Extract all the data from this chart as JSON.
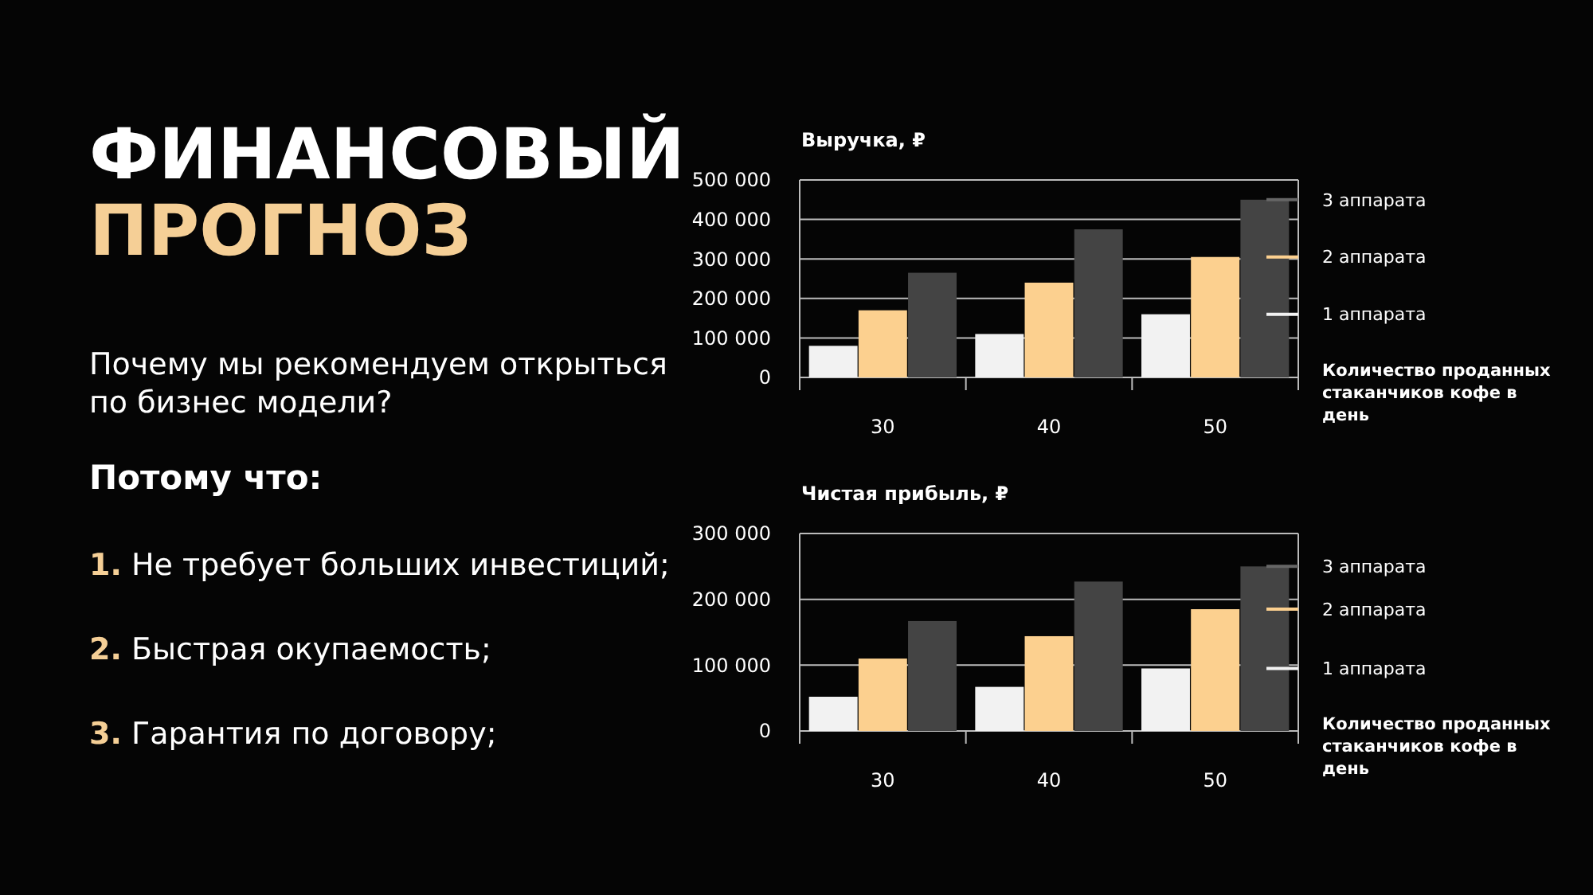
{
  "chart_data": [
    {
      "type": "other",
      "title": "ФИНАНСОВЫЙ ПРОГНОЗ",
      "annotations": [
        "Почему мы рекомендуем открыться по бизнес модели?",
        "Потому что:",
        "1. Не требует больших инвестиций;",
        "2. Быстрая окупаемость;",
        "3. Гарантия по договору;"
      ]
    },
    {
      "type": "bar",
      "title": "Выручка, ₽",
      "xlabel": "Количество проданных стаканчиков кофе в день",
      "categories": [
        "30",
        "40",
        "50"
      ],
      "series": [
        {
          "name": "1 аппарата",
          "color": "#f2f2f2",
          "values": [
            80000,
            110000,
            160000
          ]
        },
        {
          "name": "2 аппарата",
          "color": "#fcd08f",
          "values": [
            170000,
            240000,
            305000
          ]
        },
        {
          "name": "3 аппарата",
          "color": "#444444",
          "values": [
            265000,
            375000,
            450000
          ]
        }
      ],
      "ylim": [
        0,
        500000
      ],
      "yticks": [
        {
          "value": 0,
          "label": "0"
        },
        {
          "value": 100000,
          "label": "100 000"
        },
        {
          "value": 200000,
          "label": "200 000"
        },
        {
          "value": 300000,
          "label": "300 000"
        },
        {
          "value": 400000,
          "label": "400 000"
        },
        {
          "value": 500000,
          "label": "500 000"
        }
      ],
      "grid": "y",
      "legend": "right"
    },
    {
      "type": "bar",
      "title": "Чистая прибыль, ₽",
      "xlabel": "Количество проданных стаканчиков кофе в день",
      "categories": [
        "30",
        "40",
        "50"
      ],
      "series": [
        {
          "name": "1 аппарата",
          "color": "#f2f2f2",
          "values": [
            52000,
            67000,
            95000
          ]
        },
        {
          "name": "2 аппарата",
          "color": "#fcd08f",
          "values": [
            110000,
            144000,
            185000
          ]
        },
        {
          "name": "3 аппарата",
          "color": "#444444",
          "values": [
            167000,
            227000,
            250000
          ]
        }
      ],
      "ylim": [
        0,
        300000
      ],
      "yticks": [
        {
          "value": 0,
          "label": "0"
        },
        {
          "value": 100000,
          "label": "100 000"
        },
        {
          "value": 200000,
          "label": "200 000"
        },
        {
          "value": 300000,
          "label": "300 000"
        }
      ],
      "grid": "y",
      "legend": "right"
    }
  ]
}
